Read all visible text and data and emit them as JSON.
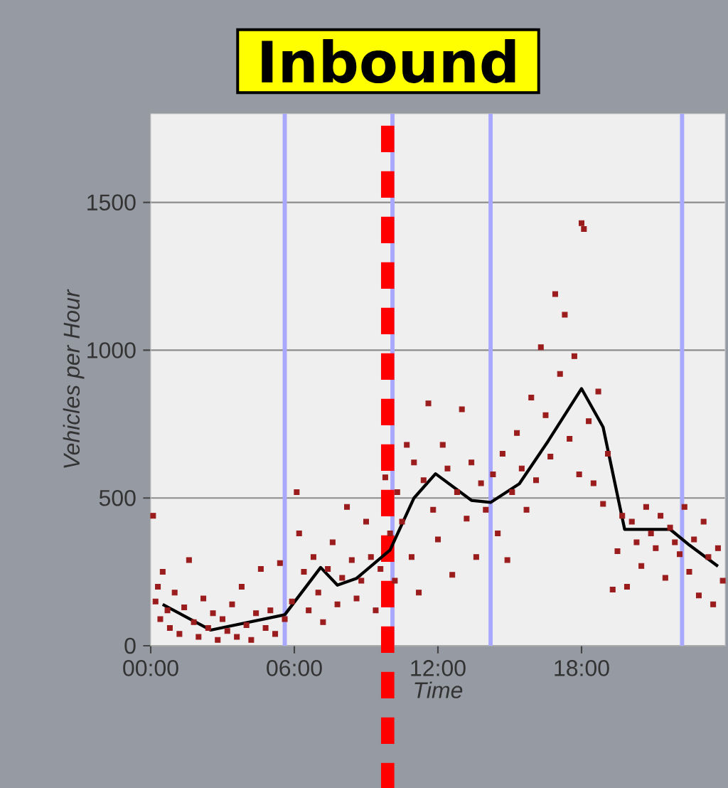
{
  "chart_data": {
    "type": "scatter",
    "title": "Inbound",
    "xlabel": "Time",
    "ylabel": "Vehicles per Hour",
    "xlim": [
      0,
      24
    ],
    "ylim": [
      0,
      1800
    ],
    "xticks": [
      {
        "value": 0,
        "label": "00:00"
      },
      {
        "value": 6,
        "label": "06:00"
      },
      {
        "value": 12,
        "label": "12:00"
      },
      {
        "value": 18,
        "label": "18:00"
      }
    ],
    "yticks": [
      0,
      500,
      1000,
      1500
    ],
    "grid": "y",
    "ref_lines": [
      {
        "axis": "x",
        "value": 5.6,
        "color": "#a8a8ff",
        "line_style": "solid"
      },
      {
        "axis": "x",
        "value": 10.1,
        "color": "#a8a8ff",
        "line_style": "solid"
      },
      {
        "axis": "x",
        "value": 14.2,
        "color": "#a8a8ff",
        "line_style": "solid"
      },
      {
        "axis": "x",
        "value": 22.2,
        "color": "#a8a8ff",
        "line_style": "solid"
      },
      {
        "axis": "x",
        "value": 9.9,
        "color": "#ff0000",
        "line_style": "dashed"
      }
    ],
    "series": [
      {
        "color": "#9b1c1c",
        "marker": "square",
        "x": [
          0.1,
          0.2,
          0.3,
          0.4,
          0.5,
          0.7,
          0.8,
          1.0,
          1.2,
          1.4,
          1.6,
          1.8,
          2.0,
          2.2,
          2.4,
          2.6,
          2.8,
          3.0,
          3.2,
          3.4,
          3.6,
          3.8,
          4.0,
          4.2,
          4.4,
          4.6,
          4.8,
          5.0,
          5.2,
          5.4,
          5.6,
          5.9,
          6.1,
          6.2,
          6.4,
          6.6,
          6.8,
          7.0,
          7.2,
          7.4,
          7.6,
          7.8,
          8.0,
          8.2,
          8.4,
          8.6,
          8.8,
          9.0,
          9.2,
          9.4,
          9.6,
          9.8,
          10.0,
          10.2,
          10.3,
          10.5,
          10.7,
          10.9,
          11.0,
          11.2,
          11.4,
          11.6,
          11.8,
          12.0,
          12.2,
          12.4,
          12.6,
          12.8,
          13.0,
          13.2,
          13.4,
          13.6,
          13.8,
          14.0,
          14.3,
          14.5,
          14.7,
          14.9,
          15.1,
          15.3,
          15.5,
          15.7,
          15.9,
          16.1,
          16.3,
          16.5,
          16.7,
          16.9,
          17.1,
          17.3,
          17.5,
          17.7,
          17.9,
          18.0,
          18.1,
          18.3,
          18.5,
          18.7,
          18.9,
          19.1,
          19.3,
          19.5,
          19.7,
          19.9,
          20.1,
          20.3,
          20.5,
          20.7,
          20.9,
          21.1,
          21.3,
          21.5,
          21.7,
          21.9,
          22.1,
          22.3,
          22.5,
          22.7,
          22.9,
          23.1,
          23.3,
          23.5,
          23.7,
          23.9
        ],
        "values": [
          440,
          150,
          200,
          90,
          250,
          120,
          60,
          180,
          40,
          130,
          290,
          80,
          30,
          160,
          60,
          110,
          20,
          90,
          50,
          140,
          30,
          200,
          70,
          20,
          110,
          260,
          60,
          120,
          40,
          280,
          90,
          150,
          520,
          380,
          250,
          120,
          300,
          180,
          80,
          260,
          350,
          140,
          230,
          470,
          290,
          160,
          220,
          420,
          300,
          120,
          260,
          570,
          380,
          220,
          520,
          420,
          680,
          300,
          620,
          180,
          560,
          820,
          460,
          360,
          680,
          600,
          240,
          520,
          800,
          430,
          620,
          300,
          550,
          460,
          580,
          380,
          650,
          290,
          520,
          720,
          600,
          460,
          840,
          560,
          1010,
          780,
          640,
          1190,
          920,
          1120,
          700,
          980,
          580,
          1430,
          1410,
          760,
          550,
          860,
          480,
          650,
          190,
          320,
          440,
          200,
          420,
          350,
          270,
          470,
          380,
          330,
          440,
          230,
          400,
          350,
          310,
          470,
          250,
          360,
          170,
          420,
          300,
          140,
          330,
          220
        ]
      },
      {
        "type": "line",
        "color": "#000000",
        "marker": "none",
        "x": [
          0.5,
          2.5,
          5.6,
          7.1,
          7.8,
          8.6,
          10.0,
          11.0,
          11.9,
          13.4,
          14.2,
          15.4,
          16.6,
          18.0,
          18.9,
          19.8,
          21.7,
          22.5,
          23.7
        ],
        "values": [
          140,
          53,
          105,
          265,
          205,
          228,
          324,
          500,
          582,
          492,
          485,
          548,
          692,
          870,
          740,
          394,
          394,
          341,
          269
        ]
      }
    ]
  }
}
